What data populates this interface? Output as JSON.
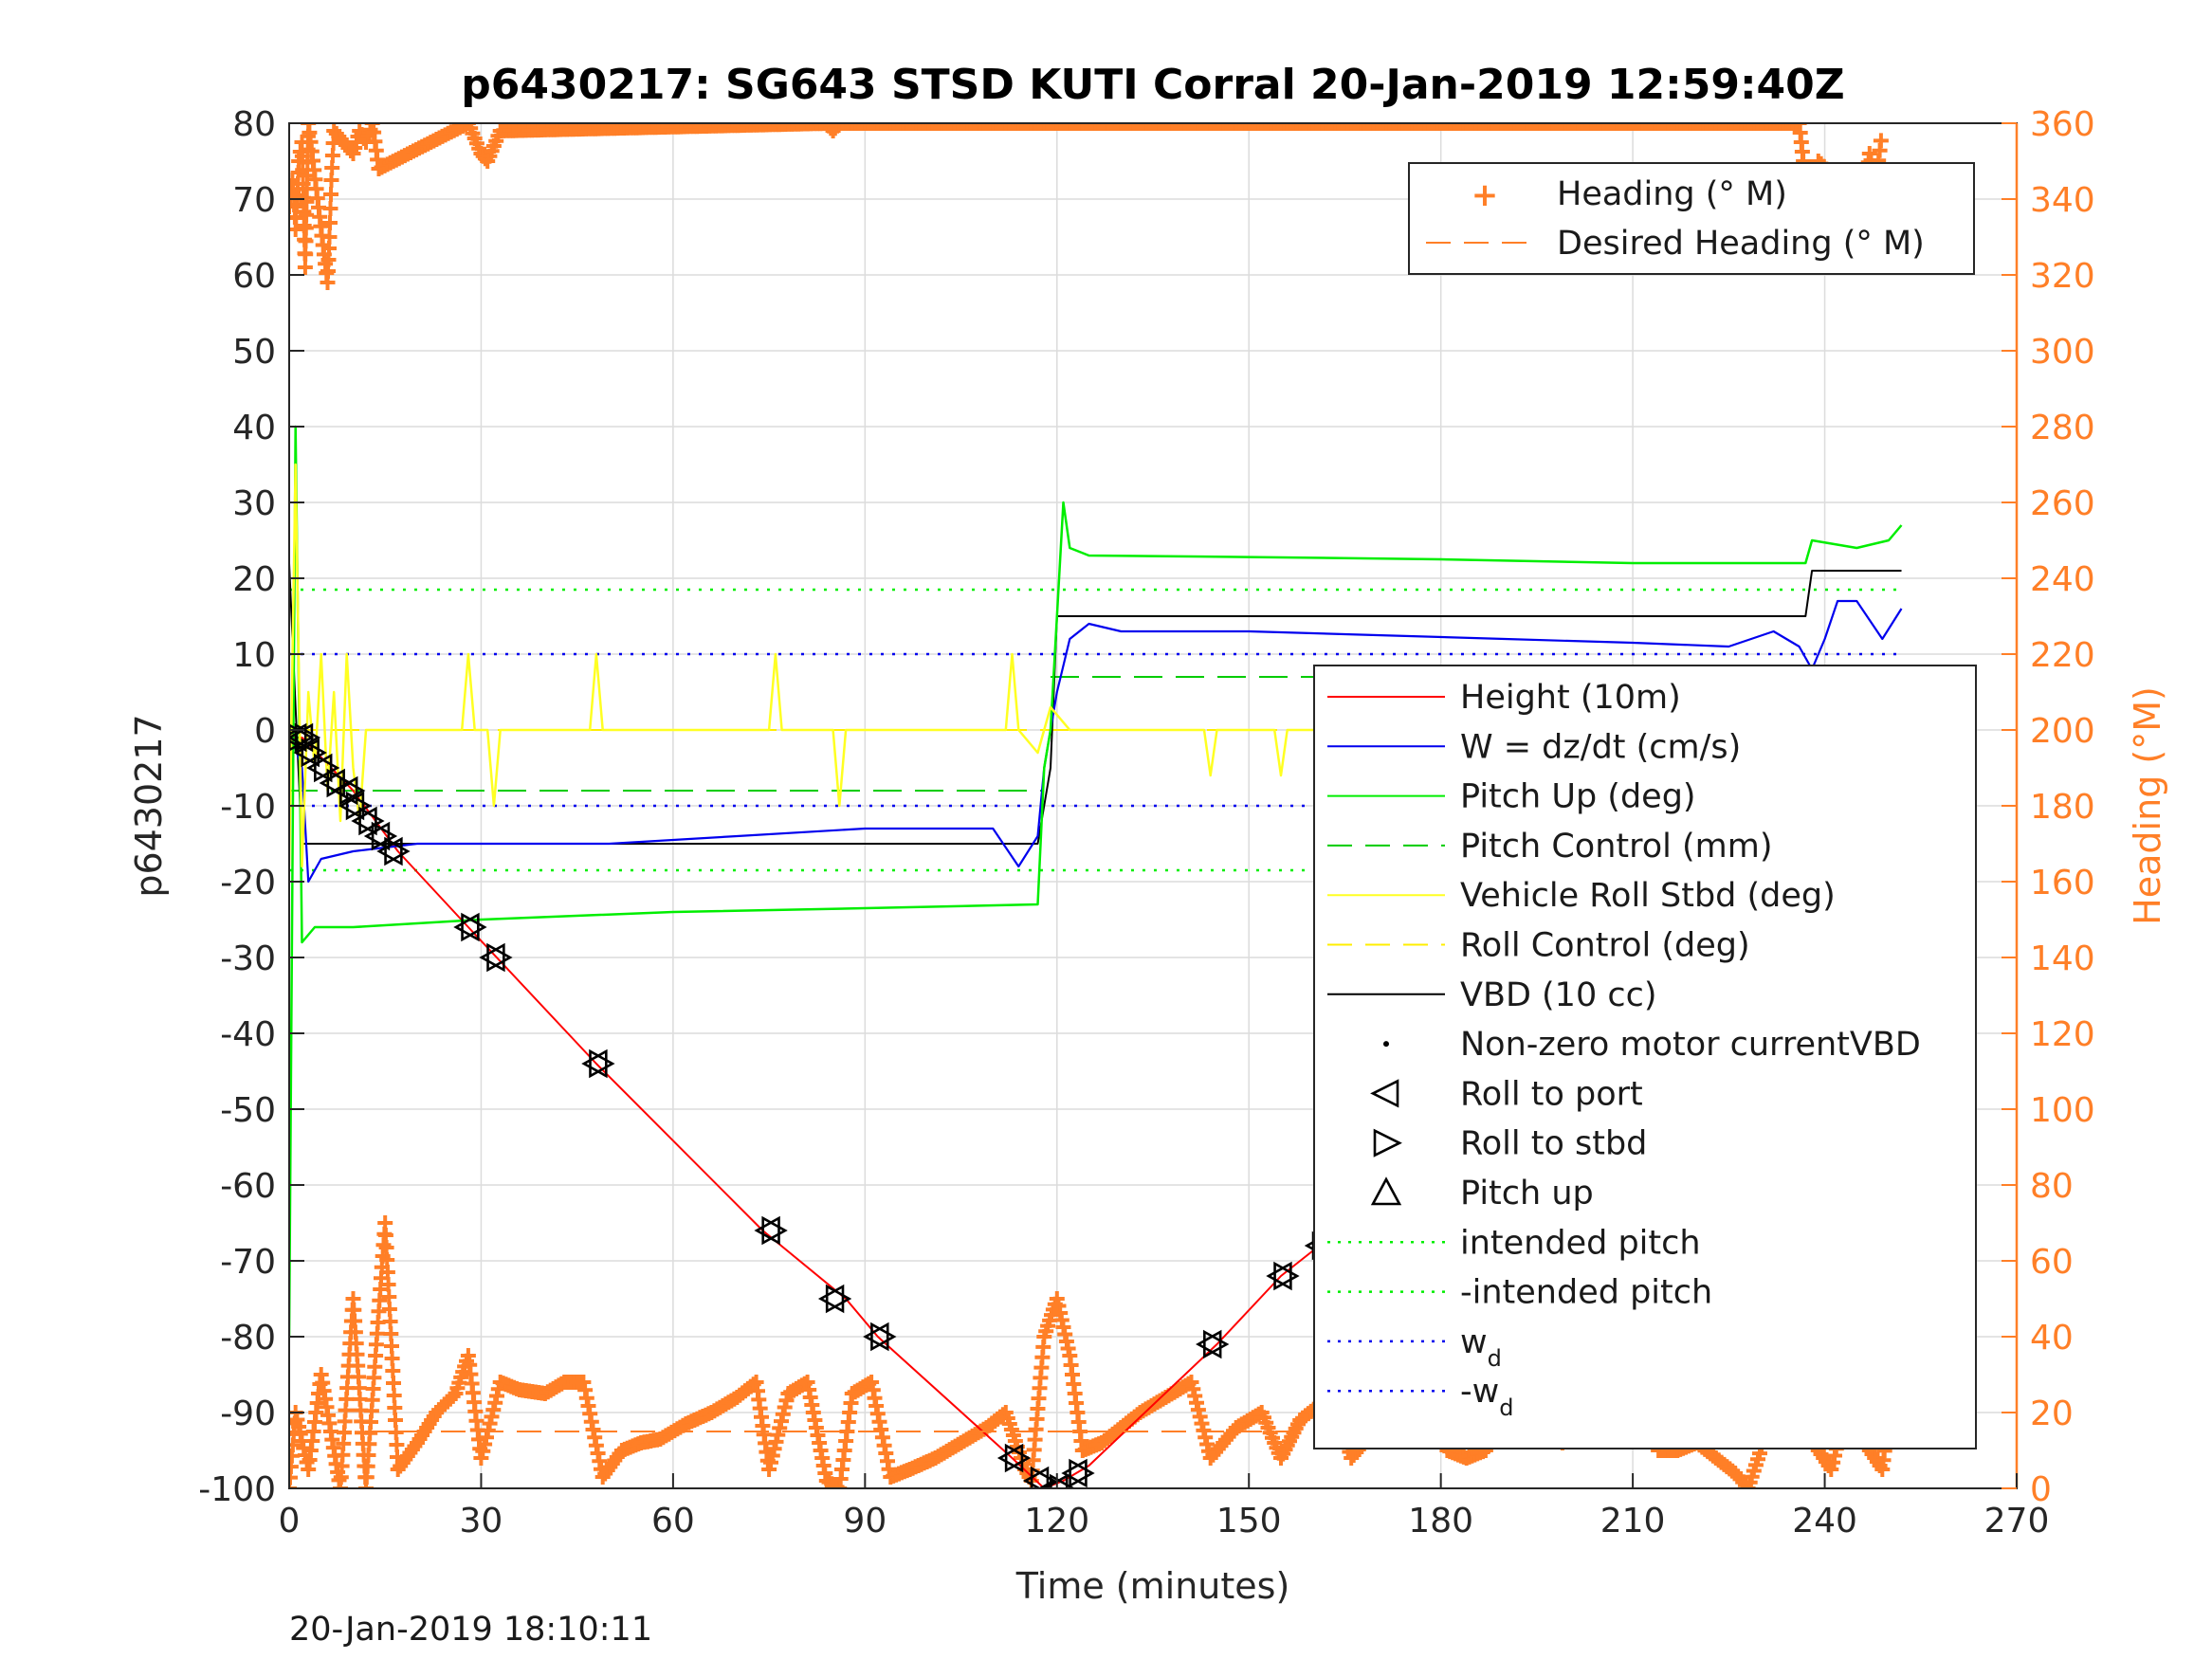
{
  "chart_data": {
    "type": "line",
    "title": "p6430217: SG643 STSD KUTI Corral 20-Jan-2019 12:59:40Z",
    "xlabel": "Time (minutes)",
    "ylabel_left": "p6430217",
    "ylabel_right": "Heading (°M)",
    "footer": "20-Jan-2019 18:10:11",
    "xlim": [
      0,
      270
    ],
    "ylim_left": [
      -100,
      80
    ],
    "ylim_right": [
      0,
      360
    ],
    "x_ticks": [
      "0",
      "30",
      "60",
      "90",
      "120",
      "150",
      "180",
      "210",
      "240",
      "270"
    ],
    "y_ticks_left": [
      "80",
      "70",
      "60",
      "50",
      "40",
      "30",
      "20",
      "10",
      "0",
      "-10",
      "-20",
      "-30",
      "-40",
      "-50",
      "-60",
      "-70",
      "-80",
      "-90",
      "-100"
    ],
    "y_ticks_right": [
      "360",
      "340",
      "320",
      "300",
      "280",
      "260",
      "240",
      "220",
      "200",
      "180",
      "160",
      "140",
      "120",
      "100",
      "80",
      "60",
      "40",
      "20",
      "0"
    ],
    "grid": true,
    "colors": {
      "height": "#ff0000",
      "w": "#0000ee",
      "pitch": "#00ee00",
      "roll": "#ffff22",
      "vbd": "#000000",
      "heading": "#ff7f27"
    },
    "legend_heading": {
      "placement": "top-right",
      "entries": [
        "Heading (° M)",
        "Desired Heading (° M)"
      ]
    },
    "legend_main": {
      "placement": "right",
      "entries": [
        "Height (10m)",
        "W = dz/dt (cm/s)",
        "Pitch Up (deg)",
        "Pitch Control (mm)",
        "Vehicle Roll Stbd (deg)",
        "Roll Control (deg)",
        "VBD (10 cc)",
        "Non-zero motor currentVBD",
        "Roll to port",
        "Roll to stbd",
        "Pitch up",
        "intended pitch",
        "-intended pitch",
        "w",
        "-w"
      ],
      "subscript": "d"
    },
    "series": [
      {
        "name": "Height (10m)",
        "axis": "left",
        "x": [
          0,
          2,
          10,
          17,
          28,
          48,
          74,
          87,
          92,
          113,
          118,
          121,
          125,
          145,
          155,
          161,
          178,
          199,
          214,
          228,
          238,
          243,
          248,
          252
        ],
        "y": [
          -1,
          -1,
          -8,
          -16,
          -26,
          -44,
          -66,
          -75,
          -80,
          -96,
          -100,
          -99,
          -97,
          -81,
          -72,
          -68,
          -55,
          -40,
          -28,
          -19,
          -12,
          -8,
          -4,
          -1
        ]
      },
      {
        "name": "VBD (10 cc)",
        "axis": "left",
        "x": [
          0,
          1,
          2,
          117,
          119,
          120,
          237,
          238,
          252
        ],
        "y": [
          22,
          3,
          -15,
          -15,
          -5,
          15,
          15,
          21,
          21
        ]
      },
      {
        "name": "W = dz/dt (cm/s)",
        "axis": "left",
        "x": [
          0,
          2,
          3,
          5,
          10,
          20,
          30,
          50,
          70,
          90,
          110,
          114,
          117,
          118,
          119,
          120,
          122,
          125,
          130,
          140,
          150,
          170,
          190,
          210,
          225,
          232,
          236,
          238,
          240,
          242,
          245,
          249,
          252
        ],
        "y": [
          0,
          -5,
          -20,
          -17,
          -16,
          -15,
          -15,
          -15,
          -14,
          -13,
          -13,
          -18,
          -14,
          -5,
          0,
          5,
          12,
          14,
          13,
          13,
          13,
          12.5,
          12,
          11.5,
          11,
          13,
          11,
          8,
          12,
          17,
          17,
          12,
          16
        ]
      },
      {
        "name": "Pitch Up (deg)",
        "axis": "left",
        "x": [
          0,
          1,
          2,
          4,
          10,
          30,
          60,
          90,
          117,
          118,
          119,
          120,
          121,
          122,
          125,
          150,
          180,
          210,
          237,
          238,
          245,
          250,
          252
        ],
        "y": [
          -80,
          40,
          -28,
          -26,
          -26,
          -25,
          -24,
          -23.5,
          -23,
          -5,
          0,
          15,
          30,
          24,
          23,
          22.8,
          22.5,
          22,
          22,
          25,
          24,
          25,
          27
        ]
      },
      {
        "name": "Vehicle Roll Stbd (deg)",
        "axis": "left",
        "x": [
          0,
          1,
          2,
          3,
          4,
          5,
          6,
          7,
          8,
          9,
          10,
          11,
          12,
          14,
          27,
          28,
          29,
          31,
          32,
          33,
          47,
          48,
          49,
          75,
          76,
          77,
          85,
          86,
          87,
          112,
          113,
          114,
          117,
          119,
          122,
          143,
          144,
          145,
          154,
          155,
          156,
          164,
          165,
          166,
          236,
          237,
          238,
          239,
          240,
          243,
          244,
          245,
          246,
          247,
          248,
          249,
          250,
          252
        ],
        "y": [
          -18,
          35,
          -18,
          5,
          -5,
          10,
          -8,
          5,
          -12,
          10,
          -5,
          -12,
          0,
          0,
          0,
          10,
          0,
          0,
          -10,
          0,
          0,
          10,
          0,
          0,
          10,
          0,
          0,
          -10,
          0,
          0,
          10,
          0,
          -3,
          3,
          0,
          0,
          -6,
          0,
          0,
          -6,
          0,
          0,
          -10,
          0,
          0,
          8,
          0,
          -8,
          0,
          0,
          -10,
          5,
          -10,
          0,
          5,
          8,
          -5,
          0
        ]
      },
      {
        "name": "Heading (° M)",
        "axis": "right",
        "marker": "+",
        "x": [
          0,
          1,
          3,
          5,
          8,
          10,
          12,
          15,
          17,
          20,
          23,
          26,
          28,
          30,
          33,
          36,
          40,
          43,
          46,
          49,
          52,
          55,
          58,
          62,
          66,
          70,
          73,
          75,
          78,
          81,
          84,
          86,
          88,
          91,
          94,
          97,
          101,
          105,
          109,
          112,
          115,
          116,
          118,
          120,
          122,
          124,
          127,
          130,
          133,
          137,
          141,
          144,
          146,
          148,
          152,
          155,
          158,
          161,
          163,
          166,
          169,
          172,
          175,
          178,
          181,
          184,
          187,
          190,
          193,
          196,
          199,
          203,
          207,
          211,
          213,
          214,
          217,
          220,
          223,
          226,
          228,
          232,
          236,
          239,
          241,
          244,
          247,
          249,
          251,
          252
        ],
        "y": [
          0,
          20,
          5,
          30,
          0,
          50,
          0,
          70,
          5,
          12,
          20,
          25,
          35,
          8,
          28,
          26,
          25,
          28,
          28,
          3,
          10,
          12,
          13,
          17,
          20,
          24,
          28,
          5,
          25,
          28,
          2,
          0,
          25,
          28,
          3,
          5,
          8,
          12,
          16,
          20,
          5,
          2,
          40,
          50,
          35,
          10,
          12,
          16,
          20,
          24,
          28,
          8,
          12,
          16,
          20,
          8,
          18,
          22,
          26,
          8,
          14,
          18,
          22,
          32,
          10,
          8,
          10,
          18,
          22,
          26,
          12,
          16,
          22,
          26,
          32,
          10,
          10,
          12,
          8,
          4,
          0,
          20,
          18,
          10,
          5,
          25,
          10,
          5,
          32,
          10
        ]
      },
      {
        "name": "Heading (° M)",
        "axis": "right",
        "marker": "+",
        "x": [
          0,
          0.5,
          1,
          1.5,
          2,
          2.5,
          3,
          6,
          6.3,
          6.6,
          7,
          10,
          11,
          12,
          13,
          14,
          28,
          29,
          30,
          31,
          32,
          33,
          84,
          85,
          86,
          226,
          227,
          236,
          237,
          238,
          239,
          246,
          247,
          248,
          249
        ],
        "y": [
          338,
          345,
          332,
          350,
          355,
          322,
          360,
          318,
          330,
          345,
          358,
          352,
          358,
          355,
          360,
          348,
          360,
          356,
          352,
          350,
          354,
          358,
          360,
          358,
          360,
          360,
          360,
          360,
          345,
          335,
          350,
          338,
          352,
          345,
          358
        ]
      },
      {
        "name": "Desired Heading (° M)",
        "axis": "right",
        "x": [
          0,
          252
        ],
        "y": [
          15,
          15
        ]
      }
    ],
    "reference_lines": [
      {
        "name": "intended pitch",
        "axis": "left",
        "y": 18.5,
        "x": [
          0,
          252
        ]
      },
      {
        "name": "-intended pitch",
        "axis": "left",
        "y": -18.5,
        "x": [
          0,
          252
        ]
      },
      {
        "name": "w_d",
        "axis": "left",
        "y": 10,
        "x": [
          0,
          252
        ]
      },
      {
        "name": "-w_d",
        "axis": "left",
        "y": -10,
        "x": [
          0,
          252
        ]
      },
      {
        "name": "Pitch Control (mm)",
        "axis": "left",
        "segments": [
          {
            "x": [
              0,
              118
            ],
            "y": -8
          },
          {
            "x": [
              119,
              252
            ],
            "y": 7
          }
        ]
      },
      {
        "name": "Roll Control (deg)",
        "axis": "left",
        "segments": [
          {
            "x": [
              0,
              252
            ],
            "y": 0
          }
        ]
      }
    ],
    "roll_markers": {
      "x": [
        1,
        2,
        3,
        5,
        7,
        9,
        10,
        12,
        14,
        16,
        28,
        32,
        48,
        75,
        85,
        92,
        113,
        117,
        120,
        123,
        144,
        155,
        161,
        177,
        198,
        214,
        228,
        238,
        244,
        249,
        252
      ],
      "y": [
        -1,
        -1,
        -3,
        -5,
        -7,
        -8,
        -10,
        -12,
        -14,
        -16,
        -26,
        -30,
        -44,
        -66,
        -75,
        -80,
        -96,
        -99,
        -100,
        -98,
        -81,
        -72,
        -68,
        -55,
        -40,
        -28,
        -19,
        -12,
        -8,
        -3,
        -1
      ]
    }
  }
}
